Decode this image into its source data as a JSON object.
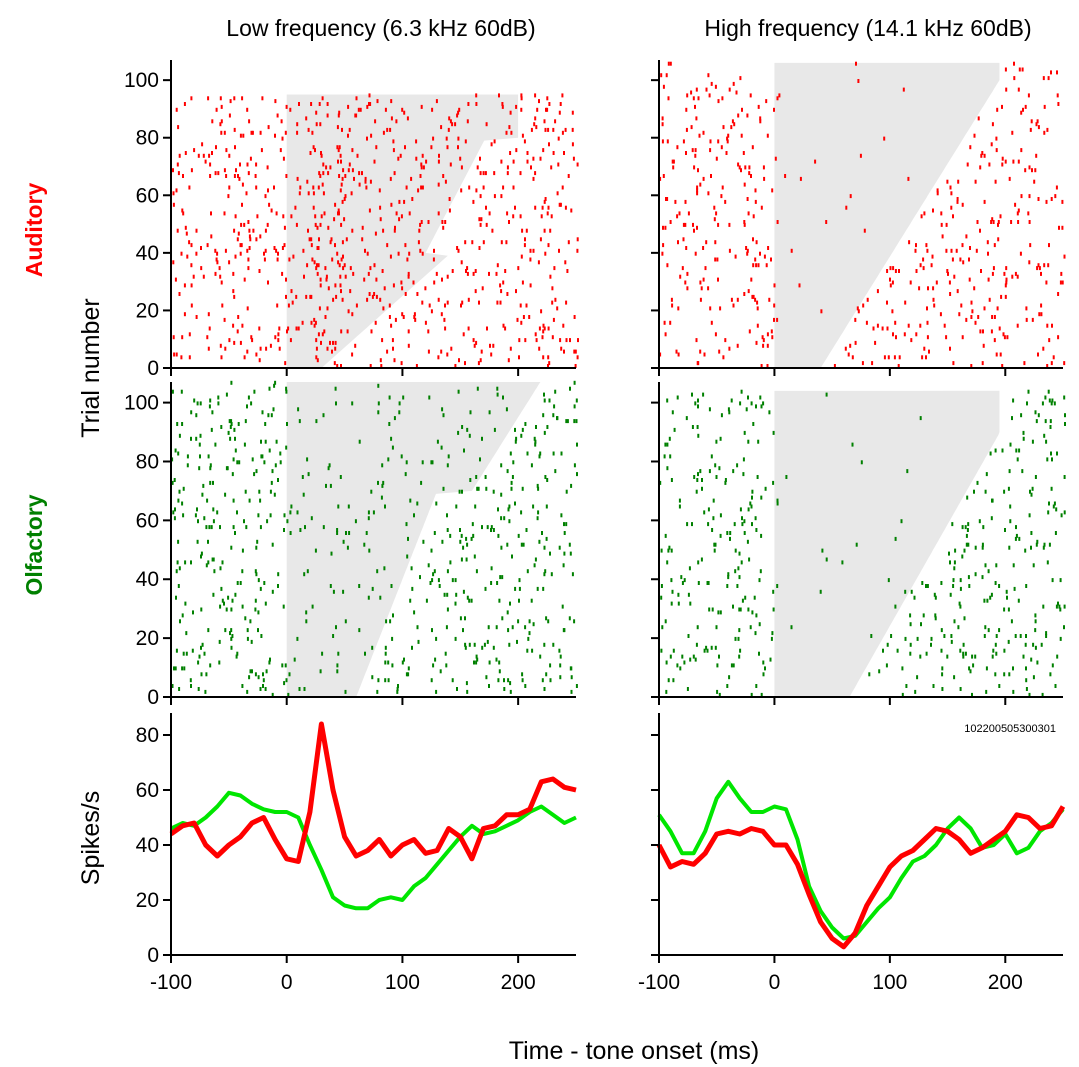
{
  "chart_data": {
    "type": "raster+line",
    "columns": [
      {
        "title": "Low frequency (6.3 kHz 60dB)"
      },
      {
        "title": "High frequency (14.1 kHz 60dB)"
      }
    ],
    "row_labels": {
      "auditory": {
        "text": "Auditory",
        "color": "#ff0000"
      },
      "olfactory": {
        "text": "Olfactory",
        "color": "#008000"
      }
    },
    "ylabel_raster": "Trial number",
    "ylabel_psth": "Spikes/s",
    "xlabel": "Time - tone onset (ms)",
    "cell_id": "102200505300301",
    "xlim": [
      -100,
      250
    ],
    "x_ticks": [
      -100,
      0,
      100,
      200
    ],
    "raster_ylim": [
      0,
      107
    ],
    "raster_y_ticks": [
      0,
      20,
      40,
      60,
      80,
      100
    ],
    "psth_ylim": [
      0,
      88
    ],
    "psth_y_ticks": [
      0,
      20,
      40,
      60,
      80
    ],
    "colors": {
      "auditory_spikes": "#ff0000",
      "olfactory_spikes": "#008000",
      "auditory_psth": "#ff0000",
      "olfactory_psth": "#00e600",
      "shade": "#e8e8e8"
    },
    "psth_time": [
      -100,
      -90,
      -80,
      -70,
      -60,
      -50,
      -40,
      -30,
      -20,
      -10,
      0,
      10,
      20,
      30,
      40,
      50,
      60,
      70,
      80,
      90,
      100,
      110,
      120,
      130,
      140,
      150,
      160,
      170,
      180,
      190,
      200,
      210,
      220,
      230,
      240,
      250
    ],
    "psth": [
      {
        "panel": "low",
        "series": [
          {
            "values": [
              44,
              47,
              48,
              40,
              36,
              40,
              43,
              48,
              50,
              42,
              35,
              34,
              52,
              84,
              60,
              43,
              36,
              38,
              42,
              36,
              40,
              42,
              37,
              38,
              46,
              43,
              35,
              46,
              47,
              51,
              51,
              53,
              63,
              64,
              61,
              60
            ]
          },
          {
            "values": [
              46,
              48,
              47,
              50,
              54,
              59,
              58,
              55,
              53,
              52,
              52,
              50,
              40,
              31,
              21,
              18,
              17,
              17,
              20,
              21,
              20,
              25,
              28,
              33,
              38,
              43,
              47,
              44,
              45,
              47,
              49,
              52,
              54,
              51,
              48,
              50
            ]
          }
        ]
      },
      {
        "panel": "high",
        "series": [
          {
            "values": [
              40,
              32,
              34,
              33,
              37,
              44,
              45,
              44,
              46,
              45,
              40,
              40,
              33,
              22,
              12,
              6,
              3,
              8,
              18,
              25,
              32,
              36,
              38,
              42,
              46,
              45,
              42,
              37,
              39,
              42,
              45,
              51,
              50,
              46,
              47,
              54
            ]
          },
          {
            "values": [
              51,
              45,
              37,
              37,
              45,
              57,
              63,
              57,
              52,
              52,
              54,
              53,
              42,
              25,
              16,
              10,
              6,
              7,
              12,
              17,
              21,
              28,
              34,
              36,
              40,
              46,
              50,
              46,
              39,
              40,
              44,
              37,
              39,
              45,
              48,
              53
            ]
          }
        ]
      }
    ],
    "raster_description": "Each raster plots spike times (ms from tone onset) for each trial; grey region marks post-onset window up to the sorted response time."
  }
}
